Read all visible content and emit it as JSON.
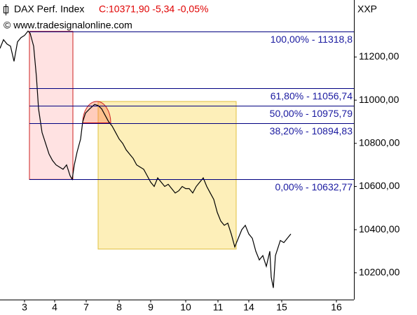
{
  "chart_data": {
    "type": "line",
    "title": "DAX Perf. Index",
    "quote": "C:10371,90 -5,34 -0,05%",
    "subtitle": "© www.tradesignalonline.com",
    "symbol": "XXP",
    "x": [
      0,
      1,
      2,
      3,
      4,
      5,
      6,
      7,
      8,
      8.6,
      9.6,
      10.4,
      11,
      12,
      13,
      14,
      15,
      16,
      17,
      18,
      19,
      20,
      20.6,
      21.2,
      22,
      23,
      23.6,
      24.4,
      25.6,
      27,
      28,
      29,
      30,
      31,
      32,
      33,
      34,
      35,
      36,
      37,
      38,
      39,
      40,
      41,
      42,
      43,
      44,
      45,
      46,
      47,
      48,
      49,
      50,
      51,
      52,
      53,
      54,
      55,
      56,
      57,
      58,
      59,
      60,
      61,
      62,
      63,
      64,
      65,
      66,
      67,
      68,
      69,
      70,
      71,
      72,
      73,
      74,
      75,
      76,
      77,
      77.4,
      78,
      78.6,
      79.4,
      80,
      81,
      82,
      83
    ],
    "series": [
      {
        "name": "DAX Perf. Index",
        "color": "#000000",
        "values": [
          11240,
          11280,
          11260,
          11250,
          11180,
          11270,
          11290,
          11300,
          11320,
          11310,
          11250,
          11107,
          10960,
          10850,
          10800,
          10750,
          10720,
          10700,
          10690,
          10680,
          10700,
          10650,
          10633,
          10700,
          10760,
          10820,
          10900,
          10940,
          10960,
          10980,
          10975,
          10960,
          10930,
          10900,
          10880,
          10850,
          10820,
          10800,
          10770,
          10750,
          10730,
          10700,
          10690,
          10680,
          10650,
          10620,
          10600,
          10640,
          10620,
          10600,
          10610,
          10590,
          10570,
          10580,
          10600,
          10590,
          10590,
          10570,
          10600,
          10620,
          10640,
          10600,
          10570,
          10540,
          10480,
          10440,
          10420,
          10430,
          10380,
          10320,
          10360,
          10400,
          10420,
          10380,
          10360,
          10300,
          10260,
          10280,
          10230,
          10300,
          10180,
          10130,
          10280,
          10320,
          10350,
          10340,
          10360,
          10380
        ]
      }
    ],
    "xlim": [
      0,
      101
    ],
    "xticks": [
      {
        "value": 7,
        "label": "3"
      },
      {
        "value": 15.6,
        "label": "4"
      },
      {
        "value": 24.6,
        "label": "7"
      },
      {
        "value": 34,
        "label": "8"
      },
      {
        "value": 43,
        "label": "9"
      },
      {
        "value": 53,
        "label": "10"
      },
      {
        "value": 62.2,
        "label": "11"
      },
      {
        "value": 71,
        "label": "14"
      },
      {
        "value": 80.4,
        "label": "15"
      },
      {
        "value": 96,
        "label": "16"
      }
    ],
    "ylim": [
      10076,
      11464
    ],
    "yticks": [
      {
        "value": 10200,
        "label": "10200,00"
      },
      {
        "value": 10400,
        "label": "10400,00"
      },
      {
        "value": 10600,
        "label": "10600,00"
      },
      {
        "value": 10800,
        "label": "10800,00"
      },
      {
        "value": 11000,
        "label": "11000,00"
      },
      {
        "value": 11200,
        "label": "11200,00"
      }
    ],
    "fib_start": 8.4,
    "fib_levels": [
      {
        "value": 11318.8,
        "label": "100,00% - 11318,8"
      },
      {
        "value": 11056.74,
        "label": "61,80% - 11056,74"
      },
      {
        "value": 10975.79,
        "label": "50,00% - 10975,79"
      },
      {
        "value": 10894.83,
        "label": "38,20% - 10894,83"
      },
      {
        "value": 10632.77,
        "label": "0,00% - 10632,77"
      }
    ],
    "fib_color": "#000080",
    "boxes": [
      {
        "x": [
          8.4,
          20.8
        ],
        "y": [
          10632.77,
          11318.8
        ],
        "fill": "rgba(255,60,60,0.15)",
        "stroke": "#cc2020"
      },
      {
        "x": [
          28,
          67.4
        ],
        "y": [
          10310,
          10994
        ],
        "fill": "rgba(250,215,80,0.4)",
        "stroke": "#e0c040"
      }
    ],
    "arc": {
      "x": [
        23.6,
        31.6
      ],
      "y": [
        10894.83,
        10994
      ],
      "fill": "rgba(255,110,60,0.35)",
      "stroke": "#cc2020"
    }
  }
}
